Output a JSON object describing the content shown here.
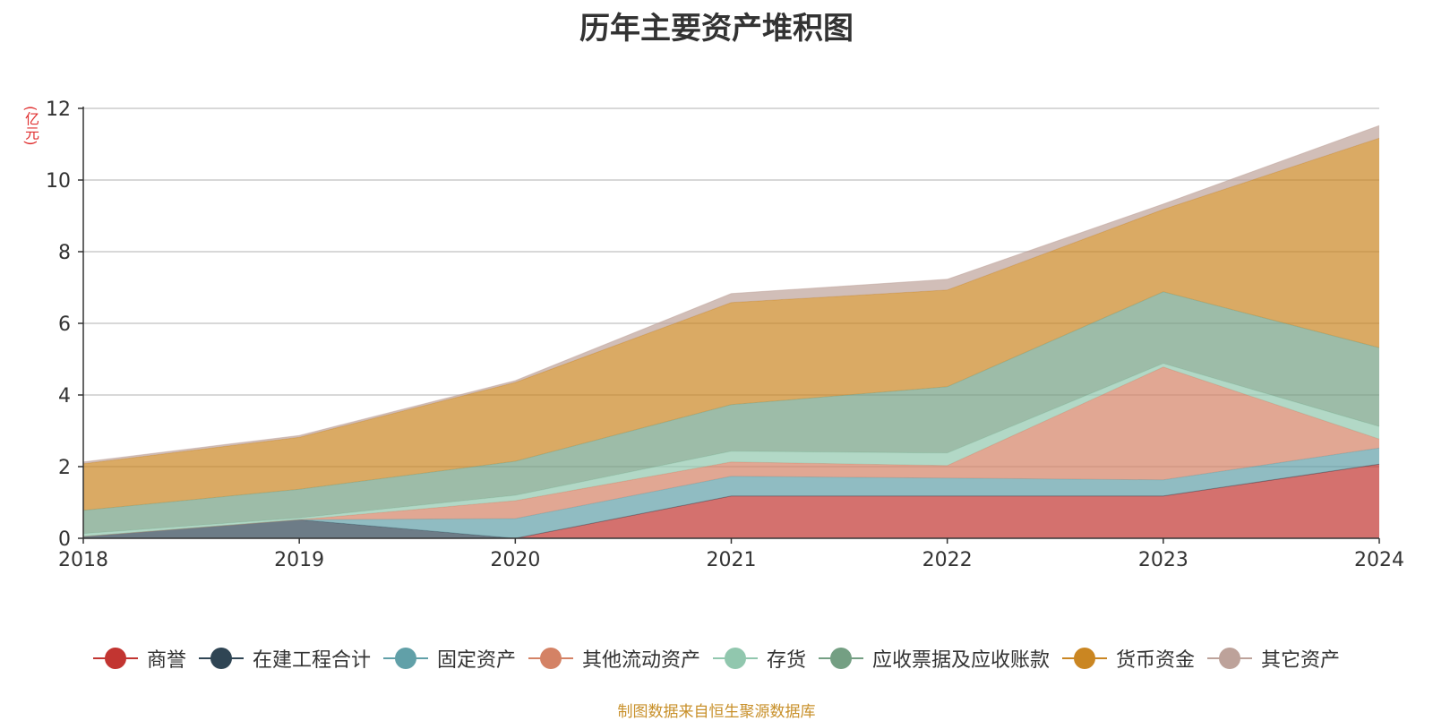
{
  "title": "历年主要资产堆积图",
  "unit": "(亿元)",
  "source": "制图数据来自恒生聚源数据库",
  "chart_data": {
    "type": "area",
    "stacked": true,
    "title": "历年主要资产堆积图",
    "ylabel": "(亿元)",
    "xlabel": "",
    "ylim": [
      0,
      12
    ],
    "yticks": [
      0,
      2,
      4,
      6,
      8,
      10,
      12
    ],
    "grid": true,
    "legend_position": "bottom",
    "categories": [
      "2018",
      "2019",
      "2020",
      "2021",
      "2022",
      "2023",
      "2024"
    ],
    "series": [
      {
        "name": "商誉",
        "color": "#c23531",
        "values": [
          0,
          0,
          0,
          1.18,
          1.18,
          1.18,
          2.07
        ]
      },
      {
        "name": "在建工程合计",
        "color": "#2f4554",
        "values": [
          0.05,
          0.52,
          0,
          0,
          0,
          0,
          0
        ]
      },
      {
        "name": "固定资产",
        "color": "#61a0a8",
        "values": [
          0,
          0,
          0.55,
          0.55,
          0.5,
          0.45,
          0.45
        ]
      },
      {
        "name": "其他流动资产",
        "color": "#d48265",
        "values": [
          0,
          0,
          0.5,
          0.4,
          0.35,
          3.15,
          0.25
        ]
      },
      {
        "name": "存货",
        "color": "#91c7ae",
        "values": [
          0.08,
          0.05,
          0.15,
          0.3,
          0.35,
          0.1,
          0.35
        ]
      },
      {
        "name": "应收票据及应收账款",
        "color": "#749f83",
        "values": [
          0.65,
          0.8,
          0.95,
          1.3,
          1.85,
          2.0,
          2.2
        ]
      },
      {
        "name": "货币资金",
        "color": "#ca8622",
        "values": [
          1.3,
          1.45,
          2.2,
          2.85,
          2.7,
          2.3,
          5.85
        ]
      },
      {
        "name": "其它资产",
        "color": "#bda29a",
        "values": [
          0.05,
          0.05,
          0.05,
          0.25,
          0.3,
          0.15,
          0.35
        ]
      }
    ]
  }
}
